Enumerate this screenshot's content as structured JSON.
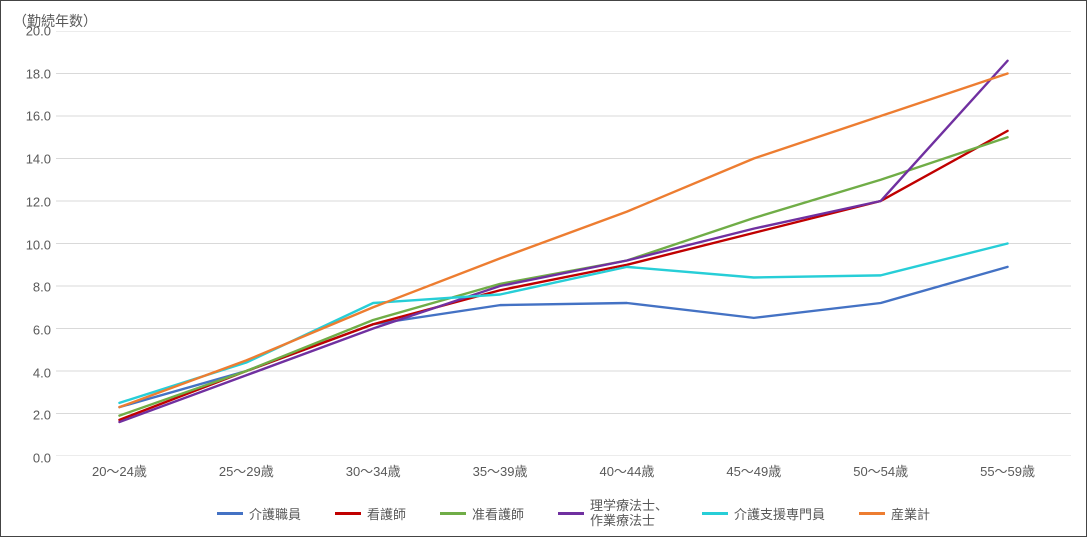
{
  "chart": {
    "type": "line",
    "y_axis_title": "（勤続年数）",
    "categories": [
      "20～24歳",
      "25～29歳",
      "30～34歳",
      "35～39歳",
      "40～44歳",
      "45～49歳",
      "50～54歳",
      "55～59歳"
    ],
    "y": {
      "min": 0.0,
      "max": 20.0,
      "step": 2.0,
      "decimals": 1
    },
    "grid_color": "#d9d9d9",
    "axis_color": "#d9d9d9",
    "tick_mark_color": "#808080",
    "text_color": "#595959",
    "border_color": "#444444",
    "background_color": "#ffffff",
    "line_width": 2.4,
    "series": [
      {
        "name": "介護職員",
        "color": "#4472c4",
        "values": [
          2.3,
          4.0,
          6.2,
          7.1,
          7.2,
          6.5,
          7.2,
          8.9
        ]
      },
      {
        "name": "看護師",
        "color": "#c00000",
        "values": [
          1.7,
          4.0,
          6.2,
          7.8,
          9.0,
          10.5,
          12.0,
          15.3
        ]
      },
      {
        "name": "准看護師",
        "color": "#70ad47",
        "values": [
          1.9,
          4.0,
          6.4,
          8.1,
          9.2,
          11.2,
          13.0,
          15.0
        ]
      },
      {
        "name": "理学療法士、\n作業療法士",
        "legend_label": "理学療法士、",
        "legend_label2": "作業療法士",
        "color": "#7030a0",
        "values": [
          1.6,
          3.8,
          6.0,
          8.0,
          9.2,
          10.7,
          12.0,
          18.6
        ]
      },
      {
        "name": "介護支援専門員",
        "color": "#27ced7",
        "values": [
          2.5,
          4.4,
          7.2,
          7.6,
          8.9,
          8.4,
          8.5,
          10.0
        ]
      },
      {
        "name": "産業計",
        "color": "#ed7d31",
        "values": [
          2.3,
          4.5,
          7.0,
          9.3,
          11.5,
          14.0,
          16.0,
          18.0
        ]
      }
    ]
  }
}
